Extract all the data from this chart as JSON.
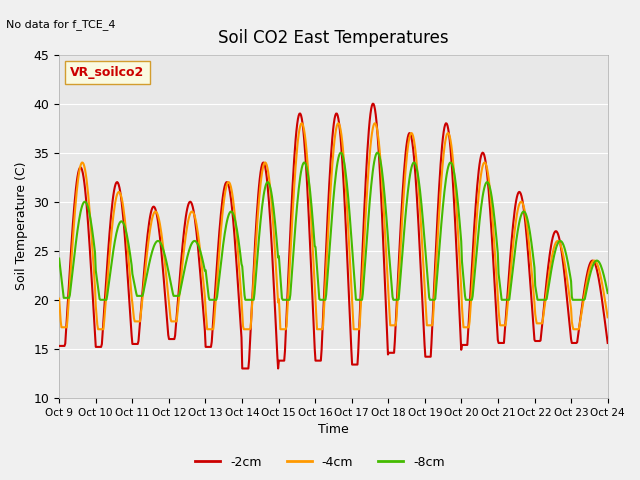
{
  "title": "Soil CO2 East Temperatures",
  "subtitle": "No data for f_TCE_4",
  "ylabel": "Soil Temperature (C)",
  "xlabel": "Time",
  "ylim": [
    10,
    45
  ],
  "legend_label": "VR_soilco2",
  "bg_color": "#e8e8e8",
  "series": {
    "-2cm": {
      "color": "#cc0000",
      "lw": 1.5
    },
    "-4cm": {
      "color": "#ff9900",
      "lw": 1.5
    },
    "-8cm": {
      "color": "#44bb00",
      "lw": 1.5
    }
  },
  "xtick_labels": [
    "Oct 9",
    "Oct 10",
    "Oct 11",
    "Oct 12",
    "Oct 13",
    "Oct 14",
    "Oct 15",
    "Oct 16",
    "Oct 17",
    "Oct 18",
    "Oct 19",
    "Oct 20",
    "Oct 21",
    "Oct 22",
    "Oct 23",
    "Oct 24"
  ],
  "ytick_values": [
    10,
    15,
    20,
    25,
    30,
    35,
    40,
    45
  ]
}
